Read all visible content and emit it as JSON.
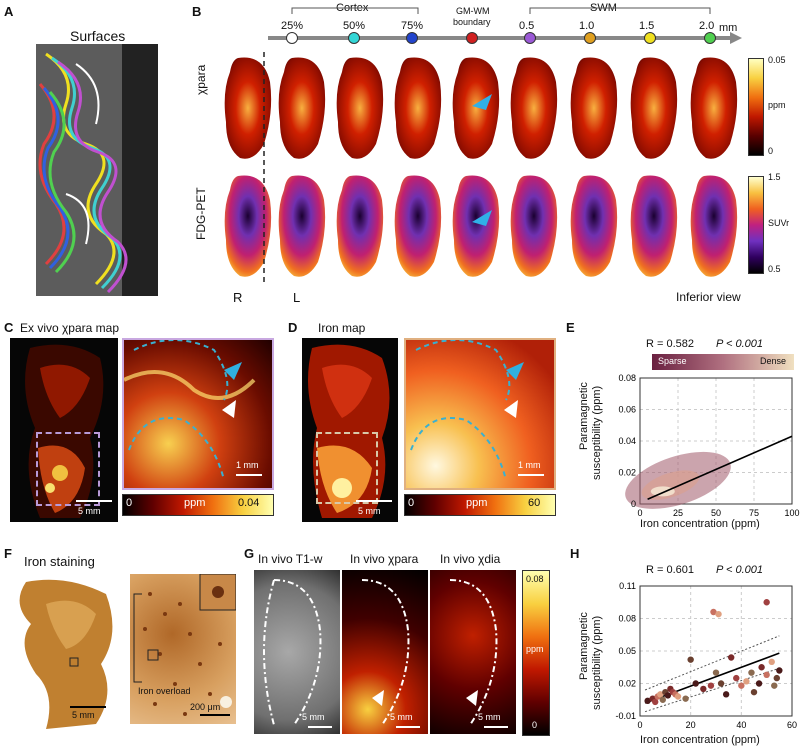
{
  "panels": {
    "A": {
      "letter": "A",
      "title": "Surfaces"
    },
    "B": {
      "letter": "B",
      "group_cortex": "Cortex",
      "group_swm": "SWM",
      "gmwm_line1": "GM-WM",
      "gmwm_line2": "boundary",
      "depths": [
        "25%",
        "50%",
        "75%",
        "0.5",
        "1.0",
        "1.5",
        "2.0"
      ],
      "depth_unit": "mm",
      "depth_colors": [
        "#ffffff",
        "#33d6d6",
        "#2244cc",
        "#d02020",
        "#9b59d6",
        "#e0a020",
        "#f0e020",
        "#50d050"
      ],
      "row1_label": "χpara",
      "row2_label": "FDG-PET",
      "cbar1": {
        "max": "0.05",
        "unit": "ppm",
        "min": "0"
      },
      "cbar2": {
        "max": "1.5",
        "unit": "SUVr",
        "min": "0.5"
      },
      "hemi_r": "R",
      "hemi_l": "L",
      "view": "Inferior view"
    },
    "C": {
      "letter": "C",
      "title": "Ex vivo χpara map",
      "scale1": "5 mm",
      "scale2": "1 mm",
      "cbar": {
        "min": "0",
        "unit": "ppm",
        "max": "0.04"
      }
    },
    "D": {
      "letter": "D",
      "title": "Iron map",
      "scale1": "5 mm",
      "scale2": "1 mm",
      "cbar": {
        "min": "0",
        "unit": "ppm",
        "max": "60"
      }
    },
    "E": {
      "letter": "E",
      "stat_r": "R = 0.582",
      "stat_p": "P < 0.001",
      "legend_sparse": "Sparse",
      "legend_dense": "Dense",
      "ylabel1": "Paramagnetic",
      "ylabel2": "susceptibility (ppm)",
      "xlabel": "Iron concentration (ppm)",
      "yticks": [
        "0.08",
        "0.06",
        "0.04",
        "0.02",
        "0"
      ],
      "xticks": [
        "0",
        "25",
        "50",
        "75",
        "100"
      ]
    },
    "F": {
      "letter": "F",
      "title": "Iron staining",
      "scale1": "5 mm",
      "scale2": "200 μm",
      "overload": "Iron overload"
    },
    "G": {
      "letter": "G",
      "t1": "In vivo T1-w",
      "para": "In vivo χpara",
      "dia": "In vivo χdia",
      "scale": "5 mm",
      "cbar": {
        "max": "0.08",
        "unit": "ppm",
        "min": "0"
      }
    },
    "H": {
      "letter": "H",
      "stat_r": "R = 0.601",
      "stat_p": "P < 0.001",
      "ylabel1": "Paramagnetic",
      "ylabel2": "susceptibility (ppm)",
      "xlabel": "Iron concentration (ppm)",
      "yticks": [
        "0.11",
        "0.08",
        "0.05",
        "0.02",
        "-0.01"
      ],
      "xticks": [
        "0",
        "20",
        "40",
        "60"
      ]
    }
  },
  "chart_data": [
    {
      "type": "scatter",
      "panel": "E",
      "xlabel": "Iron concentration (ppm)",
      "ylabel": "Paramagnetic susceptibility (ppm)",
      "xlim": [
        0,
        100
      ],
      "ylim": [
        0,
        0.08
      ],
      "x_ticks": [
        0,
        25,
        50,
        75,
        100
      ],
      "y_ticks": [
        0,
        0.02,
        0.04,
        0.06,
        0.08
      ],
      "grid": true,
      "r": 0.582,
      "fit_line": {
        "x": [
          5,
          100
        ],
        "y": [
          0.003,
          0.043
        ]
      }
    },
    {
      "type": "scatter",
      "panel": "H",
      "xlabel": "Iron concentration (ppm)",
      "ylabel": "Paramagnetic susceptibility (ppm)",
      "xlim": [
        0,
        60
      ],
      "ylim": [
        -0.01,
        0.11
      ],
      "x_ticks": [
        0,
        20,
        40,
        60
      ],
      "y_ticks": [
        -0.01,
        0.02,
        0.05,
        0.08,
        0.11
      ],
      "grid": true,
      "r": 0.601,
      "fit_line": {
        "x": [
          2,
          55
        ],
        "y": [
          0.002,
          0.048
        ]
      },
      "points": [
        [
          3,
          0.004
        ],
        [
          5,
          0.006
        ],
        [
          6,
          0.003
        ],
        [
          7,
          0.008
        ],
        [
          8,
          0.01
        ],
        [
          9,
          0.005
        ],
        [
          10,
          0.012
        ],
        [
          11,
          0.009
        ],
        [
          12,
          0.015
        ],
        [
          13,
          0.012
        ],
        [
          14,
          0.01
        ],
        [
          15,
          0.008
        ],
        [
          18,
          0.006
        ],
        [
          20,
          0.042
        ],
        [
          22,
          0.02
        ],
        [
          25,
          0.015
        ],
        [
          28,
          0.018
        ],
        [
          29,
          0.086
        ],
        [
          31,
          0.084
        ],
        [
          30,
          0.03
        ],
        [
          32,
          0.02
        ],
        [
          34,
          0.01
        ],
        [
          36,
          0.044
        ],
        [
          38,
          0.025
        ],
        [
          40,
          0.018
        ],
        [
          42,
          0.022
        ],
        [
          44,
          0.03
        ],
        [
          45,
          0.012
        ],
        [
          47,
          0.02
        ],
        [
          48,
          0.035
        ],
        [
          50,
          0.095
        ],
        [
          50,
          0.028
        ],
        [
          52,
          0.04
        ],
        [
          53,
          0.018
        ],
        [
          54,
          0.025
        ],
        [
          55,
          0.032
        ]
      ],
      "point_colors": [
        "#4a1a1a",
        "#7a2a2a",
        "#a04040",
        "#c87060",
        "#e0a080",
        "#8a6a50",
        "#6a4030"
      ]
    }
  ]
}
